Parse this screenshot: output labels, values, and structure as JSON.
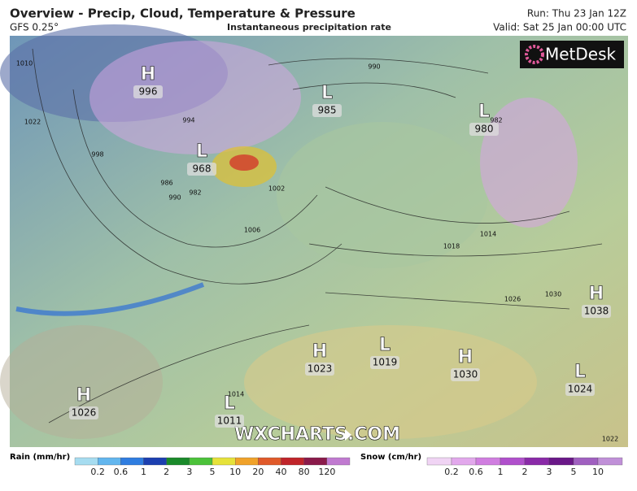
{
  "header": {
    "title": "Overview - Precip, Cloud, Temperature & Pressure",
    "model": "GFS 0.25°",
    "subtitle": "Instantaneous precipitation rate",
    "run": "Run: Thu 23 Jan 12Z",
    "valid": "Valid: Sat 25 Jan 00:00 UTC"
  },
  "logo": "MetDesk",
  "watermark": "WXCHARTS.COM",
  "pressure_centers": [
    {
      "type": "H",
      "value": 996
    },
    {
      "type": "L",
      "value": 985
    },
    {
      "type": "L",
      "value": 980
    },
    {
      "type": "L",
      "value": 968
    },
    {
      "type": "H",
      "value": 1038
    },
    {
      "type": "H",
      "value": 1023
    },
    {
      "type": "L",
      "value": 1019
    },
    {
      "type": "H",
      "value": 1030
    },
    {
      "type": "L",
      "value": 1024
    },
    {
      "type": "H",
      "value": 1026
    },
    {
      "type": "L",
      "value": 1011
    }
  ],
  "isobar_labels": [
    1010,
    1022,
    994,
    986,
    990,
    982,
    1002,
    1006,
    1014,
    1018,
    1026,
    1030,
    1022,
    1014,
    998,
    990,
    982
  ],
  "legend": {
    "rain": {
      "title": "Rain (mm/hr)",
      "ticks": [
        0.2,
        0.6,
        1,
        2,
        3,
        5,
        10,
        20,
        40,
        80,
        120
      ]
    },
    "snow": {
      "title": "Snow (cm/hr)",
      "ticks": [
        0.2,
        0.6,
        1,
        2,
        3,
        5,
        10
      ]
    }
  }
}
